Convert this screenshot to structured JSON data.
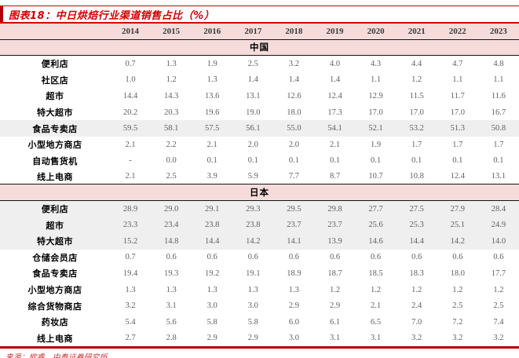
{
  "title": "图表18：中日烘焙行业渠道销售占比（%）",
  "source": "来源：欧睿、中泰证券研究所",
  "colors": {
    "accent_red": "#d40000",
    "dark_red_bar": "#b30000",
    "header_pink": "#f5dcdb",
    "highlight_gray": "#efefef",
    "value_gray": "#5f5f5f",
    "rule_black": "#141414"
  },
  "chart_data": {
    "type": "table",
    "title": "中日烘焙行业渠道销售占比（%）",
    "columns": [
      "2014",
      "2015",
      "2016",
      "2017",
      "2018",
      "2019",
      "2020",
      "2021",
      "2022",
      "2023"
    ],
    "sections": [
      {
        "name": "中国",
        "rows": [
          {
            "label": "便利店",
            "highlight": false,
            "values": [
              "0.7",
              "1.3",
              "1.9",
              "2.5",
              "3.2",
              "4.0",
              "4.3",
              "4.4",
              "4.7",
              "4.8"
            ]
          },
          {
            "label": "社区店",
            "highlight": false,
            "values": [
              "1.0",
              "1.2",
              "1.3",
              "1.4",
              "1.4",
              "1.4",
              "1.1",
              "1.2",
              "1.1",
              "1.1"
            ]
          },
          {
            "label": "超市",
            "highlight": false,
            "values": [
              "14.4",
              "14.3",
              "13.6",
              "13.1",
              "12.6",
              "12.4",
              "12.9",
              "11.5",
              "11.7",
              "11.6"
            ]
          },
          {
            "label": "特大超市",
            "highlight": false,
            "values": [
              "20.2",
              "20.3",
              "19.6",
              "19.0",
              "18.0",
              "17.3",
              "17.0",
              "17.0",
              "17.0",
              "16.7"
            ]
          },
          {
            "label": "食品专卖店",
            "highlight": true,
            "values": [
              "59.5",
              "58.1",
              "57.5",
              "56.1",
              "55.0",
              "54.1",
              "52.1",
              "53.2",
              "51.3",
              "50.8"
            ]
          },
          {
            "label": "小型地方商店",
            "highlight": false,
            "values": [
              "2.1",
              "2.2",
              "2.1",
              "2.0",
              "2.0",
              "2.1",
              "1.9",
              "1.7",
              "1.7",
              "1.7"
            ]
          },
          {
            "label": "自动售货机",
            "highlight": false,
            "values": [
              "-",
              "0.0",
              "0.1",
              "0.1",
              "0.1",
              "0.1",
              "0.1",
              "0.1",
              "0.1",
              "0.1"
            ]
          },
          {
            "label": "线上电商",
            "highlight": false,
            "values": [
              "2.1",
              "2.5",
              "3.9",
              "5.9",
              "7.7",
              "8.7",
              "10.7",
              "10.8",
              "12.4",
              "13.1"
            ]
          }
        ]
      },
      {
        "name": "日本",
        "rows": [
          {
            "label": "便利店",
            "highlight": true,
            "values": [
              "28.9",
              "29.0",
              "29.1",
              "29.3",
              "29.5",
              "29.8",
              "27.7",
              "27.5",
              "27.9",
              "28.4"
            ]
          },
          {
            "label": "超市",
            "highlight": true,
            "values": [
              "23.3",
              "23.4",
              "23.8",
              "23.8",
              "23.7",
              "23.7",
              "25.6",
              "25.3",
              "25.1",
              "24.9"
            ]
          },
          {
            "label": "特大超市",
            "highlight": true,
            "values": [
              "15.2",
              "14.8",
              "14.4",
              "14.2",
              "14.1",
              "13.9",
              "14.6",
              "14.4",
              "14.2",
              "14.0"
            ]
          },
          {
            "label": "仓储会员店",
            "highlight": false,
            "values": [
              "0.7",
              "0.6",
              "0.6",
              "0.6",
              "0.6",
              "0.6",
              "0.6",
              "0.6",
              "0.6",
              "0.6"
            ]
          },
          {
            "label": "食品专卖店",
            "highlight": false,
            "values": [
              "19.4",
              "19.3",
              "19.2",
              "19.1",
              "18.9",
              "18.7",
              "18.5",
              "18.3",
              "18.0",
              "17.7"
            ]
          },
          {
            "label": "小型地方商店",
            "highlight": false,
            "values": [
              "1.3",
              "1.3",
              "1.3",
              "1.3",
              "1.3",
              "1.2",
              "1.2",
              "1.2",
              "1.2",
              "1.2"
            ]
          },
          {
            "label": "综合货物商店",
            "highlight": false,
            "values": [
              "3.2",
              "3.1",
              "3.0",
              "3.0",
              "2.9",
              "2.9",
              "2.1",
              "2.4",
              "2.5",
              "2.5"
            ]
          },
          {
            "label": "药妆店",
            "highlight": false,
            "values": [
              "5.4",
              "5.6",
              "5.8",
              "5.8",
              "6.0",
              "6.1",
              "6.5",
              "7.0",
              "7.2",
              "7.4"
            ]
          },
          {
            "label": "线上电商",
            "highlight": false,
            "values": [
              "2.7",
              "2.8",
              "2.9",
              "2.9",
              "3.0",
              "3.1",
              "3.1",
              "3.2",
              "3.2",
              "3.2"
            ]
          }
        ]
      }
    ]
  }
}
